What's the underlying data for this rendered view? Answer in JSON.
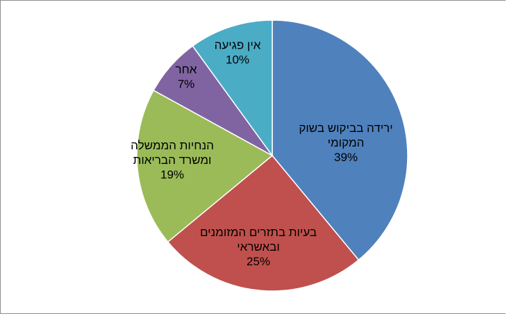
{
  "chart_data": {
    "type": "pie",
    "title": "",
    "start_angle_deg": 0,
    "direction": "clockwise",
    "slices": [
      {
        "lines": [
          "ירידה בביקוש בשוק",
          "המקומי"
        ],
        "percent_label": "39%",
        "value": 39,
        "color": "#4f81bd"
      },
      {
        "lines": [
          "בעיות בתזרים המזומנים",
          "ובאשראי"
        ],
        "percent_label": "25%",
        "value": 25,
        "color": "#c0504d"
      },
      {
        "lines": [
          "הנחיות הממשלה",
          "ומשרד הבריאות"
        ],
        "percent_label": "19%",
        "value": 19,
        "color": "#9bbb59"
      },
      {
        "lines": [
          "אחר"
        ],
        "percent_label": "7%",
        "value": 7,
        "color": "#8064a2"
      },
      {
        "lines": [
          "אין פגיעה"
        ],
        "percent_label": "10%",
        "value": 10,
        "color": "#4bacc6"
      }
    ],
    "legend": "none",
    "data_labels": "inside"
  }
}
